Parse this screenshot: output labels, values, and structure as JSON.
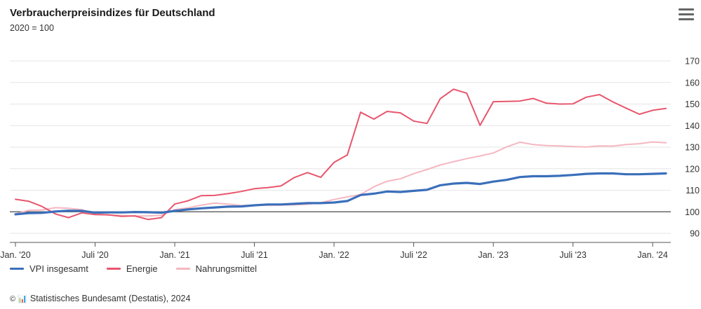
{
  "header": {
    "title": "Verbraucherpreisindizes für Deutschland",
    "subtitle": "2020 = 100",
    "menu_icon": "hamburger-menu-icon"
  },
  "footer": {
    "credit": "Statistisches Bundesamt (Destatis), 2024",
    "credit_logo": "© 📊"
  },
  "chart_data": {
    "type": "line",
    "title": "Verbraucherpreisindizes für Deutschland",
    "subtitle": "2020 = 100",
    "x_labels": [
      "Jan. '20",
      "Juli '20",
      "Jan. '21",
      "Juli '21",
      "Jan. '22",
      "Juli '22",
      "Jan. '23",
      "Juli '23",
      "Jan. '24"
    ],
    "x_label_months": [
      0,
      6,
      12,
      18,
      24,
      30,
      36,
      42,
      48
    ],
    "y_ticks": [
      90,
      100,
      110,
      120,
      130,
      140,
      150,
      160,
      170
    ],
    "ylim": [
      90,
      170
    ],
    "xlim_months": [
      0,
      49
    ],
    "reference_line": 100,
    "grid": true,
    "legend_position": "bottom-left",
    "series": [
      {
        "name": "VPI insgesamt",
        "color": "#3a6fba",
        "values": [
          98.8,
          99.4,
          99.5,
          100.1,
          100.5,
          100.4,
          99.6,
          99.7,
          99.7,
          99.9,
          99.8,
          99.6,
          100.4,
          101.1,
          101.6,
          102.0,
          102.4,
          102.5,
          103.0,
          103.4,
          103.4,
          103.7,
          104.0,
          104.0,
          104.3,
          105.0,
          107.8,
          108.4,
          109.4,
          109.2,
          109.7,
          110.2,
          112.3,
          113.1,
          113.4,
          112.9,
          114.0,
          114.8,
          116.1,
          116.5,
          116.5,
          116.7,
          117.1,
          117.6,
          117.8,
          117.8,
          117.4,
          117.4,
          117.6,
          117.8
        ]
      },
      {
        "name": "Energie",
        "color": "#e8566d",
        "values": [
          105.8,
          104.9,
          102.5,
          99.0,
          97.3,
          99.5,
          98.7,
          98.6,
          97.9,
          98.1,
          96.4,
          97.3,
          103.6,
          105.1,
          107.5,
          107.6,
          108.4,
          109.4,
          110.7,
          111.2,
          112.0,
          115.9,
          118.2,
          116.0,
          122.9,
          126.4,
          146.2,
          143.0,
          146.6,
          145.9,
          142.1,
          141.0,
          152.5,
          156.9,
          155.0,
          140.1,
          151.1,
          151.2,
          151.4,
          152.6,
          150.4,
          150.0,
          150.1,
          153.2,
          154.4,
          151.0,
          148.1,
          145.3,
          147.1,
          148.0
        ]
      },
      {
        "name": "Nahrungsmittel",
        "color": "#f5b7c1",
        "values": [
          99.0,
          100.7,
          100.8,
          101.9,
          101.6,
          101.0,
          99.1,
          98.5,
          98.3,
          98.0,
          98.1,
          98.4,
          101.0,
          101.8,
          103.1,
          104.0,
          103.6,
          102.9,
          103.0,
          103.0,
          103.1,
          103.2,
          103.5,
          104.2,
          105.7,
          106.9,
          108.0,
          111.6,
          114.2,
          115.3,
          117.7,
          119.6,
          121.7,
          123.2,
          124.7,
          125.9,
          127.3,
          130.1,
          132.3,
          131.2,
          130.7,
          130.6,
          130.3,
          130.1,
          130.6,
          130.5,
          131.2,
          131.6,
          132.4,
          132.0
        ]
      }
    ]
  }
}
